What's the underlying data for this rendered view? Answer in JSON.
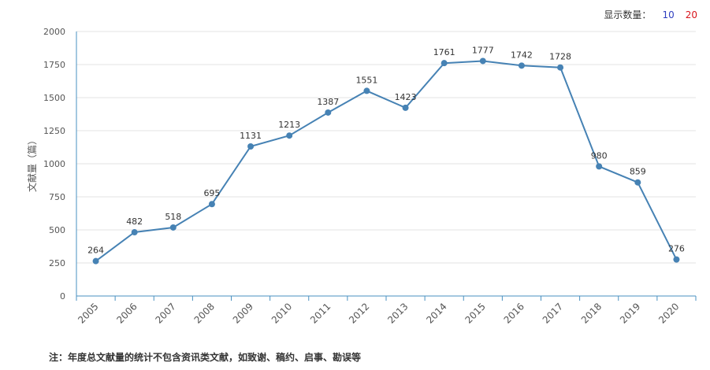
{
  "controls": {
    "label": "显示数量：",
    "options": [
      "10",
      "20"
    ]
  },
  "note": "注：年度总文献量的统计不包含资讯类文献，如致谢、稿约、启事、勘误等",
  "chart_data": {
    "type": "line",
    "title": "",
    "xlabel": "",
    "ylabel": "文献量（篇）",
    "ylim": [
      0,
      2000
    ],
    "yticks": [
      0,
      250,
      500,
      750,
      1000,
      1250,
      1500,
      1750,
      2000
    ],
    "categories": [
      "2005",
      "2006",
      "2007",
      "2008",
      "2009",
      "2010",
      "2011",
      "2012",
      "2013",
      "2014",
      "2015",
      "2016",
      "2017",
      "2018",
      "2019",
      "2020"
    ],
    "series": [
      {
        "values": [
          264,
          482,
          518,
          695,
          1131,
          1213,
          1387,
          1551,
          1423,
          1761,
          1777,
          1742,
          1728,
          980,
          859,
          276
        ]
      }
    ],
    "colors": {
      "line": "#4682b4",
      "axis": "#4a90c0",
      "grid": "#e3e3e3"
    },
    "grid": true,
    "legend": "none"
  }
}
